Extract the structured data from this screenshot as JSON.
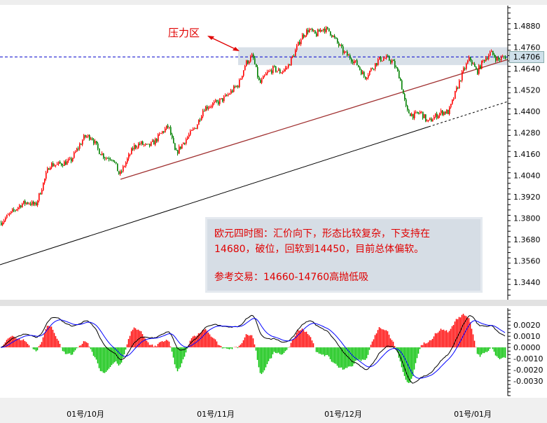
{
  "chart_data": {
    "type": "candlestick",
    "instrument_note": "欧元四时图",
    "price_axis": {
      "ticks": [
        "1.4880",
        "1.4760",
        "1.4640",
        "1.4520",
        "1.4400",
        "1.4280",
        "1.4160",
        "1.4040",
        "1.3920",
        "1.3800",
        "1.3680",
        "1.3560",
        "1.3440"
      ],
      "range": [
        1.338,
        1.4935
      ]
    },
    "current_price": "1.4706",
    "close_path": [
      1.3775,
      1.381,
      1.3845,
      1.388,
      1.389,
      1.387,
      1.3983,
      1.4101,
      1.41,
      1.411,
      1.4121,
      1.419,
      1.4258,
      1.4258,
      1.418,
      1.414,
      1.414,
      1.404,
      1.4121,
      1.42,
      1.422,
      1.42,
      1.423,
      1.428,
      1.4317,
      1.416,
      1.4219,
      1.427,
      1.432,
      1.4416,
      1.4435,
      1.445,
      1.4475,
      1.4514,
      1.4553,
      1.467,
      1.4711,
      1.4553,
      1.4612,
      1.464,
      1.462,
      1.465,
      1.473,
      1.482,
      1.486,
      1.4829,
      1.4868,
      1.4849,
      1.479,
      1.4731,
      1.47,
      1.466,
      1.459,
      1.464,
      1.469,
      1.47,
      1.468,
      1.4593,
      1.44,
      1.4376,
      1.4396,
      1.4337,
      1.437,
      1.4396,
      1.4396,
      1.451,
      1.462,
      1.47,
      1.462,
      1.469,
      1.473,
      1.469,
      1.4706
    ],
    "up_color": "#ff0000",
    "down_color": "#008000",
    "resistance_zone": [
      1.466,
      1.476
    ],
    "x_labels": [
      "01号/10月",
      "01号/11月",
      "01号/12月",
      "01号/01月"
    ],
    "macd_axis": {
      "ticks": [
        "0.0020",
        "0.0010",
        "0.0000",
        "-0.0010",
        "-0.0020",
        "-0.0030"
      ],
      "range": [
        -0.0043,
        0.0034
      ]
    },
    "grid": false
  },
  "annotation": {
    "label": "压力区"
  },
  "note": {
    "line1": "欧元四时图：汇价向下，形态比较复杂，下支持在",
    "line2": "14680，破位，回软到14450，目前总体偏软。",
    "line3": "参考交易：14660-14760高抛低吸"
  }
}
